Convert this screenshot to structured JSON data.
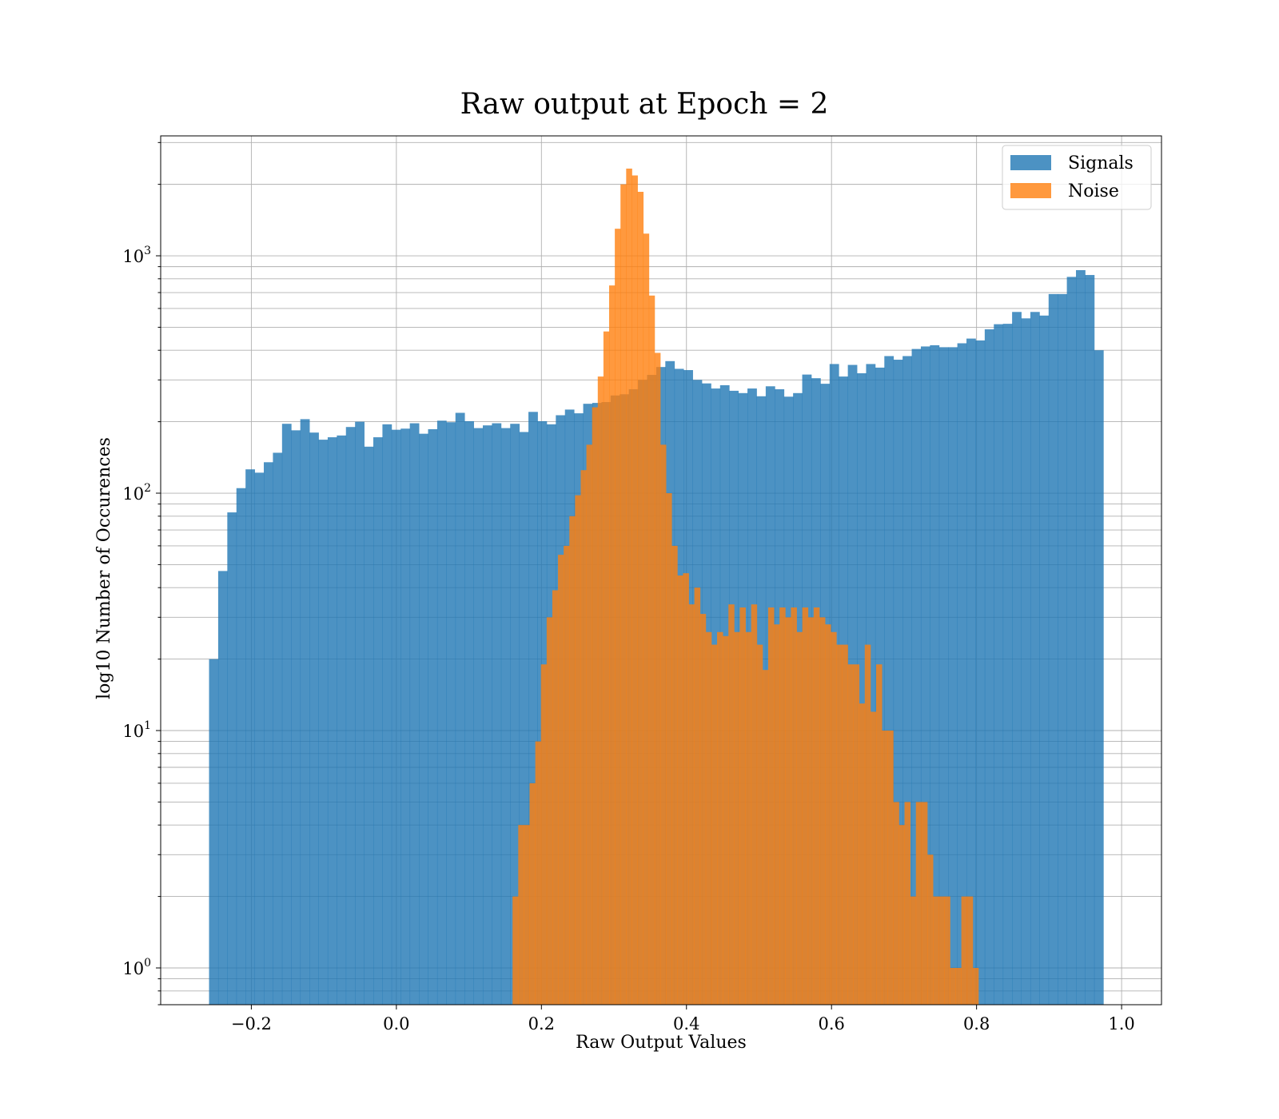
{
  "chart_data": {
    "type": "bar",
    "title": "Raw output at Epoch = 2",
    "xlabel": "Raw Output Values",
    "ylabel": "log10 Number of Occurences",
    "xscale": "linear",
    "yscale": "log",
    "xlim": [
      -0.325,
      1.055
    ],
    "ylim": [
      0.7,
      3200
    ],
    "grid": true,
    "legend": {
      "placement": "top-right",
      "entries": [
        "Signals",
        "Noise"
      ]
    },
    "x_ticks": [
      {
        "value": -0.2,
        "label": "−0.2"
      },
      {
        "value": 0.0,
        "label": "0.0"
      },
      {
        "value": 0.2,
        "label": "0.2"
      },
      {
        "value": 0.4,
        "label": "0.4"
      },
      {
        "value": 0.6,
        "label": "0.6"
      },
      {
        "value": 0.8,
        "label": "0.8"
      },
      {
        "value": 1.0,
        "label": "1.0"
      }
    ],
    "y_ticks": [
      {
        "value": 1,
        "base": "10",
        "exp": "0"
      },
      {
        "value": 10,
        "base": "10",
        "exp": "1"
      },
      {
        "value": 100,
        "base": "10",
        "exp": "2"
      },
      {
        "value": 1000,
        "base": "10",
        "exp": "3"
      }
    ],
    "series": [
      {
        "name": "Signals",
        "color": "#1f77b4",
        "opacity": 0.8,
        "bin_start": -0.2583,
        "bin_width": 0.012583,
        "values": [
          20,
          47,
          83,
          105,
          126,
          122,
          135,
          148,
          196,
          184,
          205,
          180,
          168,
          172,
          175,
          190,
          200,
          157,
          172,
          195,
          185,
          187,
          197,
          178,
          186,
          202,
          199,
          218,
          201,
          188,
          193,
          197,
          188,
          196,
          181,
          220,
          201,
          195,
          213,
          225,
          217,
          238,
          240,
          242,
          258,
          261,
          274,
          300,
          315,
          340,
          360,
          334,
          330,
          300,
          290,
          276,
          285,
          270,
          264,
          276,
          256,
          282,
          274,
          255,
          264,
          316,
          305,
          289,
          350,
          310,
          347,
          320,
          350,
          338,
          378,
          365,
          378,
          405,
          415,
          420,
          412,
          412,
          428,
          448,
          440,
          490,
          515,
          517,
          580,
          545,
          580,
          560,
          690,
          690,
          815,
          870,
          830,
          400
        ]
      },
      {
        "name": "Noise",
        "color": "#ff7f0e",
        "opacity": 0.8,
        "bin_start": 0.1602,
        "bin_width": 0.007833,
        "values": [
          2,
          4,
          4,
          6,
          9,
          19,
          30,
          39,
          55,
          60,
          80,
          98,
          125,
          160,
          230,
          310,
          480,
          750,
          1300,
          2000,
          2330,
          2180,
          1860,
          1240,
          680,
          390,
          160,
          100,
          60,
          45,
          46,
          34,
          40,
          31,
          26,
          23,
          26,
          25,
          34,
          26,
          33,
          26,
          34,
          23,
          18,
          33,
          28,
          33,
          30,
          33,
          26,
          33,
          30,
          33,
          30,
          28,
          26,
          23,
          23,
          19,
          19,
          13,
          23,
          12,
          19,
          10,
          10,
          5,
          4,
          5,
          2,
          5,
          5,
          3,
          2,
          2,
          2,
          1,
          1,
          2,
          2,
          1
        ]
      }
    ]
  }
}
